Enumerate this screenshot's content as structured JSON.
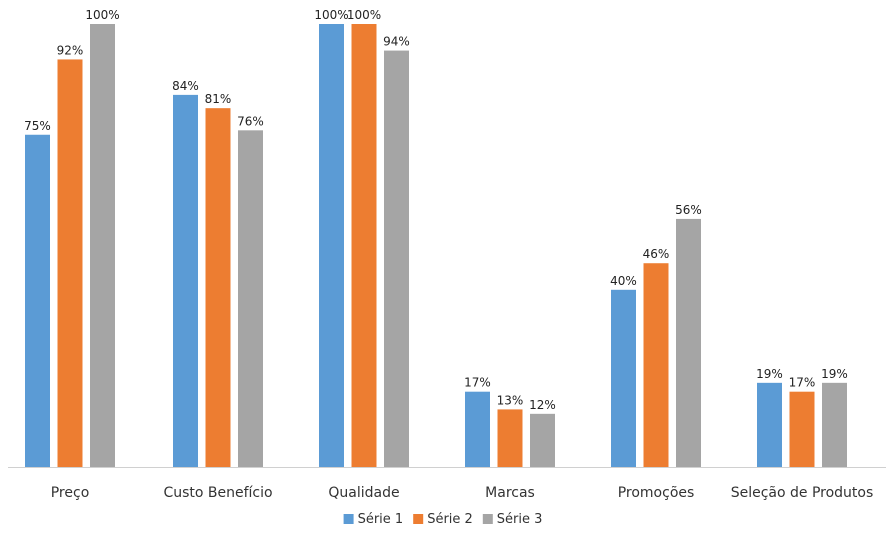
{
  "chart_data": {
    "type": "bar",
    "categories": [
      "Preço",
      "Custo Benefício",
      "Qualidade",
      "Marcas",
      "Promoções",
      "Seleção de Produtos"
    ],
    "series": [
      {
        "name": "Série 1",
        "color": "#5b9bd5",
        "values": [
          75,
          84,
          100,
          17,
          40,
          19
        ]
      },
      {
        "name": "Série 2",
        "color": "#ed7d31",
        "values": [
          92,
          81,
          100,
          13,
          46,
          17
        ]
      },
      {
        "name": "Série 3",
        "color": "#a5a5a5",
        "values": [
          100,
          76,
          94,
          12,
          56,
          19
        ]
      }
    ],
    "value_suffix": "%",
    "ylim": [
      0,
      100
    ],
    "grid": false,
    "legend_position": "bottom"
  }
}
